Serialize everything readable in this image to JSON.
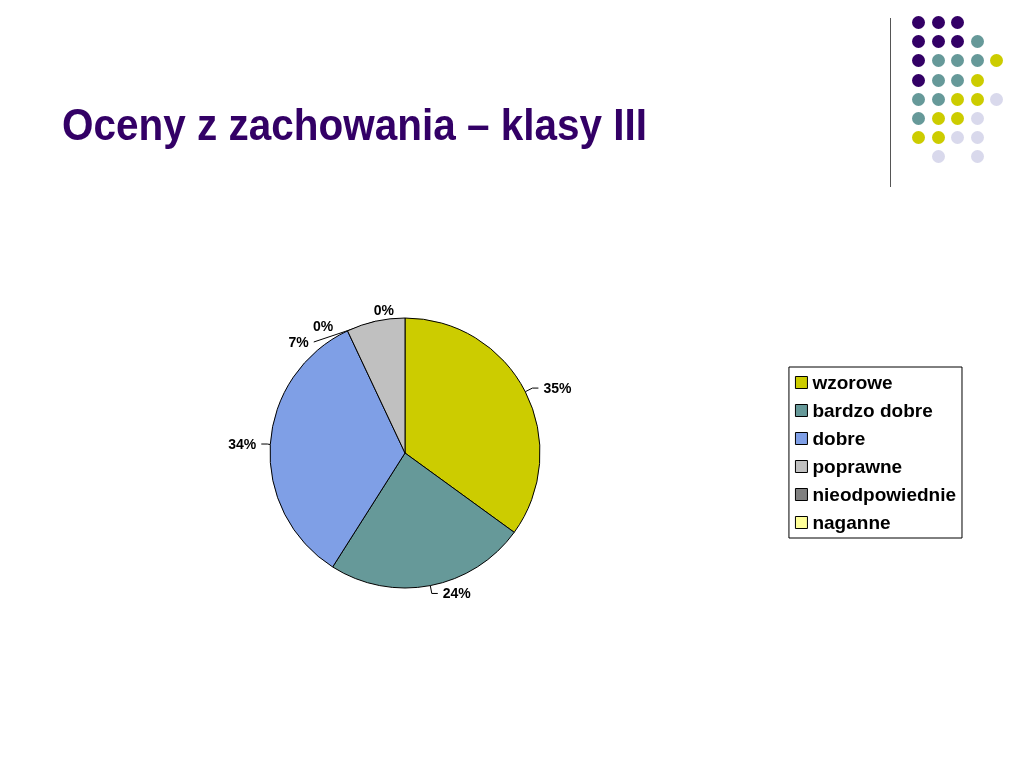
{
  "chart_data": {
    "type": "pie",
    "title": "Oceny z zachowania – klasy III",
    "categories": [
      "wzorowe",
      "bardzo dobre",
      "dobre",
      "poprawne",
      "nieodpowiednie",
      "naganne"
    ],
    "values": [
      35,
      24,
      34,
      7,
      0,
      0
    ],
    "value_labels": [
      "35%",
      "24%",
      "34%",
      "7%",
      "0%",
      "0%"
    ],
    "colors": [
      "#cccc00",
      "#669999",
      "#7f9fe6",
      "#c0c0c0",
      "#808080",
      "#ffff99"
    ],
    "legend": "right"
  }
}
